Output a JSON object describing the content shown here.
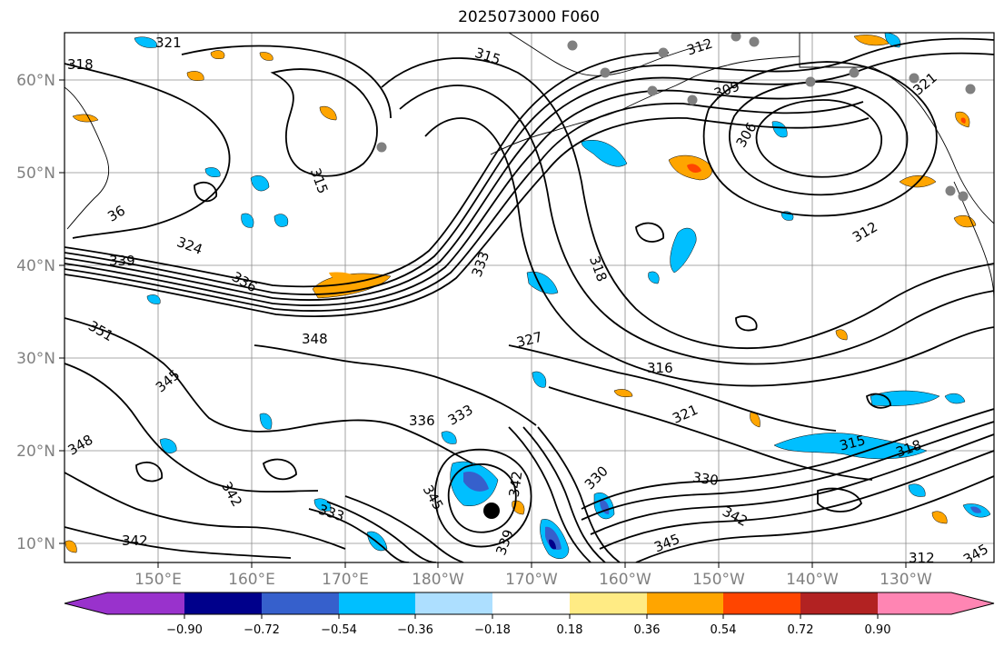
{
  "title": "2025073000 F060",
  "map": {
    "lon_ticks": [
      "150°E",
      "160°E",
      "170°E",
      "180°W",
      "170°W",
      "160°W",
      "150°W",
      "140°W",
      "130°W"
    ],
    "lat_ticks": [
      "60°N",
      "50°N",
      "40°N",
      "30°N",
      "20°N",
      "10°N"
    ],
    "lon_range": [
      "140°E",
      "120°W"
    ],
    "lat_range": [
      "8°N",
      "65°N"
    ],
    "grid": true,
    "contour_color": "#000000",
    "contour_labels": [
      "321",
      "318",
      "315",
      "312",
      "309",
      "306",
      "315",
      "312",
      "324",
      "339",
      "336",
      "333",
      "318",
      "327",
      "348",
      "351",
      "345",
      "316",
      "321",
      "315",
      "318",
      "336",
      "333",
      "348",
      "330",
      "330",
      "342",
      "342",
      "345",
      "342",
      "333",
      "342",
      "339",
      "312",
      "345",
      "345",
      "36",
      "321"
    ],
    "storm_marker": "black-dot",
    "station_markers": "gray-dots"
  },
  "colorbar": {
    "tick_labels": [
      "−0.90",
      "−0.72",
      "−0.54",
      "−0.36",
      "−0.18",
      "0.18",
      "0.36",
      "0.54",
      "0.72",
      "0.90"
    ],
    "colors": [
      "#9932CC",
      "#00008B",
      "#3660CC",
      "#00BFFF",
      "#ADDFFF",
      "#FFFFFF",
      "#FFEB84",
      "#FFA500",
      "#FF4500",
      "#B22222",
      "#FF85B3"
    ],
    "extend": "both"
  }
}
